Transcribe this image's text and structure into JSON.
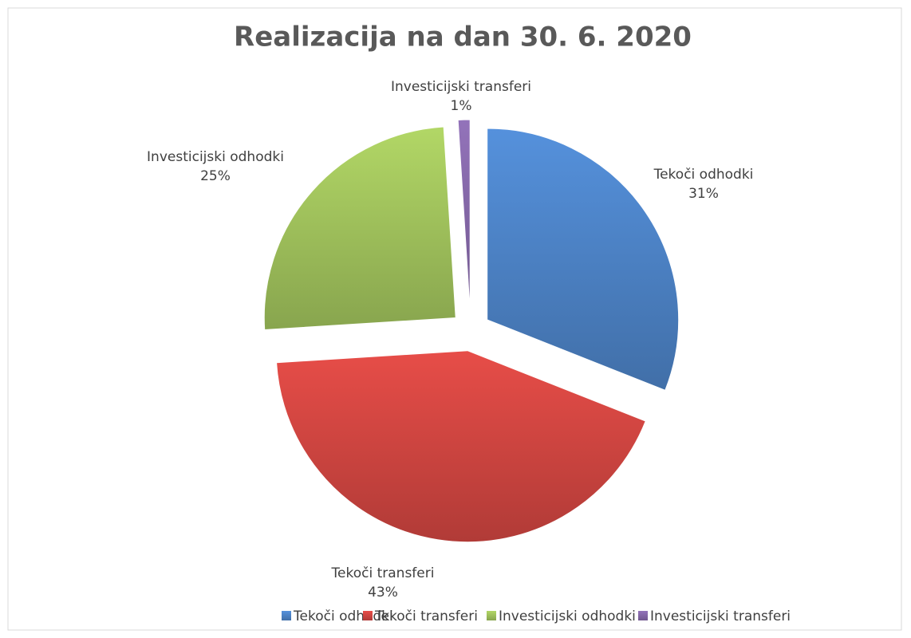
{
  "chart_data": {
    "type": "pie",
    "title": "Realizacija na dan 30. 6. 2020",
    "categories": [
      "Tekoči odhodki",
      "Tekoči transferi",
      "Investicijski odhodki",
      "Investicijski transferi"
    ],
    "values": [
      31,
      43,
      25,
      1
    ],
    "value_labels": [
      "31%",
      "43%",
      "25%",
      "1%"
    ],
    "colors": [
      "#4a7ebf",
      "#c9433f",
      "#9bbb59",
      "#8064a2"
    ],
    "legend": "bottom"
  }
}
